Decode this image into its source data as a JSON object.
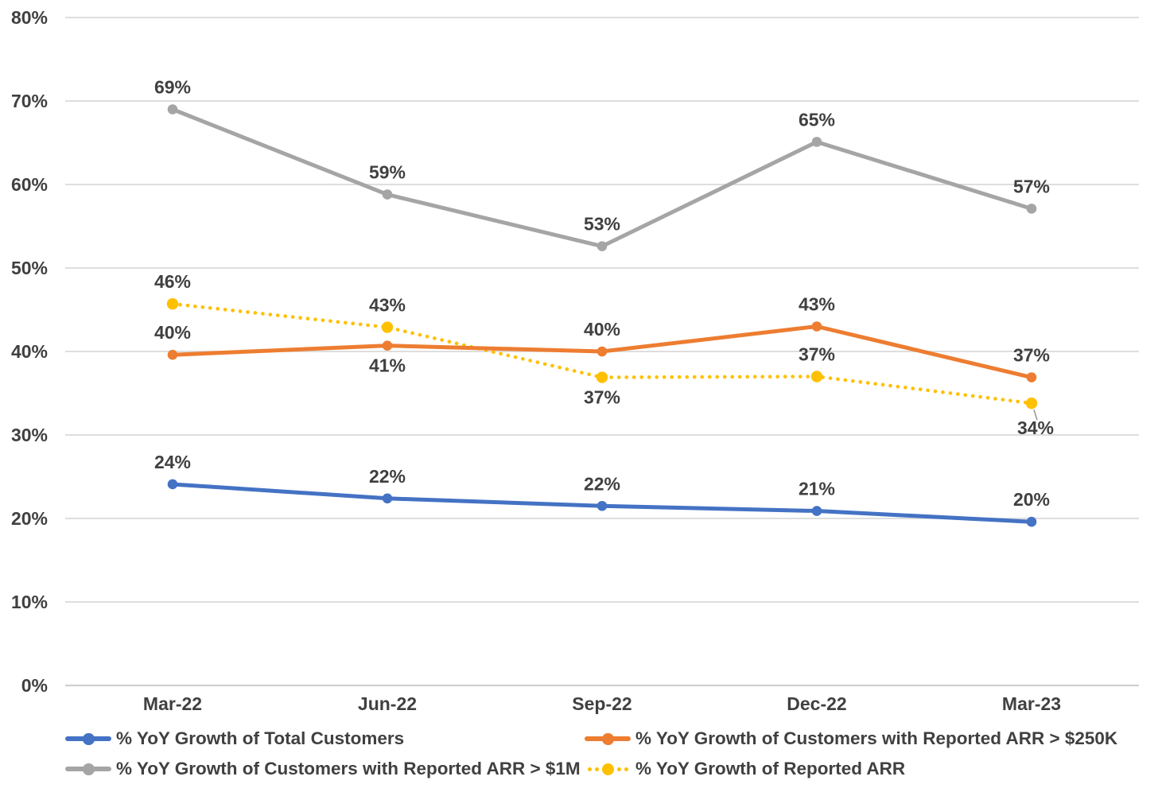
{
  "chart_data": {
    "type": "line",
    "title": "",
    "x_categories": [
      "Mar-22",
      "Jun-22",
      "Sep-22",
      "Dec-22",
      "Mar-23"
    ],
    "y_ticks": [
      "0%",
      "10%",
      "20%",
      "30%",
      "40%",
      "50%",
      "60%",
      "70%",
      "80%"
    ],
    "y_axis": {
      "min": 0,
      "max": 80,
      "step": 10,
      "grid": true
    },
    "legend_position": "bottom",
    "series": [
      {
        "name": "% YoY Growth of Total Customers",
        "color": "#4472C4",
        "line_style": "solid",
        "values": [
          24,
          22,
          22,
          21,
          20
        ],
        "labels": [
          "24%",
          "22%",
          "22%",
          "21%",
          "20%"
        ],
        "plot_values": [
          24.1,
          22.4,
          21.5,
          20.9,
          19.6
        ],
        "label_placement": [
          "above",
          "above",
          "above",
          "above",
          "above"
        ]
      },
      {
        "name": "% YoY Growth of Customers with Reported ARR > $250K",
        "color": "#ED7D31",
        "line_style": "solid",
        "values": [
          40,
          41,
          40,
          43,
          37
        ],
        "labels": [
          "40%",
          "41%",
          "40%",
          "43%",
          "37%"
        ],
        "plot_values": [
          39.6,
          40.7,
          40.0,
          43.0,
          36.9
        ],
        "label_placement": [
          "above",
          "below",
          "above",
          "above",
          "above"
        ]
      },
      {
        "name": "% YoY Growth of Customers with Reported ARR > $1M",
        "color": "#A5A5A5",
        "line_style": "solid",
        "values": [
          69,
          59,
          53,
          65,
          57
        ],
        "labels": [
          "69%",
          "59%",
          "53%",
          "65%",
          "57%"
        ],
        "plot_values": [
          69.0,
          58.8,
          52.6,
          65.1,
          57.1
        ],
        "label_placement": [
          "above",
          "above",
          "above",
          "above",
          "above"
        ]
      },
      {
        "name": "% YoY Growth of Reported ARR",
        "color": "#FFC000",
        "line_style": "dotted",
        "values": [
          46,
          43,
          37,
          37,
          34
        ],
        "labels": [
          "46%",
          "43%",
          "37%",
          "37%",
          "34%"
        ],
        "plot_values": [
          45.7,
          42.9,
          36.9,
          37.0,
          33.8
        ],
        "label_placement": [
          "above",
          "above",
          "below",
          "above",
          "below-leader"
        ]
      }
    ],
    "styles": {
      "grid_color": "#D9D9D9",
      "axis_color": "#CFCFCF",
      "text_color": "#404040",
      "leader_color": "#999999",
      "background": "#FFFFFF"
    }
  }
}
